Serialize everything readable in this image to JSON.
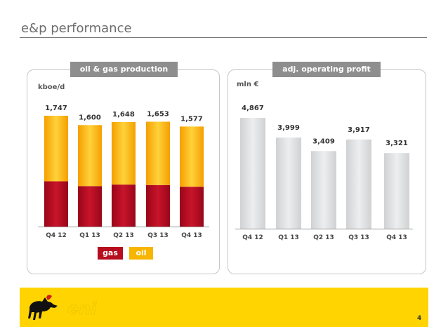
{
  "slide": {
    "title": "e&p performance",
    "page_number": "4",
    "logo_text": "eni"
  },
  "chart_data": [
    {
      "type": "bar",
      "stacked": true,
      "title": "oil & gas production",
      "unit": "kboe/d",
      "categories": [
        "Q4 12",
        "Q1 13",
        "Q2 13",
        "Q3 13",
        "Q4 13"
      ],
      "totals": [
        "1,747",
        "1,600",
        "1,648",
        "1,653",
        "1,577"
      ],
      "series": [
        {
          "name": "gas",
          "values": [
            713,
            638,
            662,
            655,
            628
          ],
          "color": "#b60e1e"
        },
        {
          "name": "oil",
          "values": [
            1034,
            962,
            986,
            998,
            949
          ],
          "color": "#f7b500"
        }
      ],
      "legend_placement": "bottom"
    },
    {
      "type": "bar",
      "title": "adj. operating profit",
      "unit": "mln €",
      "categories": [
        "Q4 12",
        "Q1 13",
        "Q2 13",
        "Q3 13",
        "Q4 13"
      ],
      "values": [
        4867,
        3999,
        3409,
        3917,
        3321
      ],
      "value_labels": [
        "4,867",
        "3,999",
        "3,409",
        "3,917",
        "3,321"
      ],
      "color": "#dcdee0"
    }
  ]
}
